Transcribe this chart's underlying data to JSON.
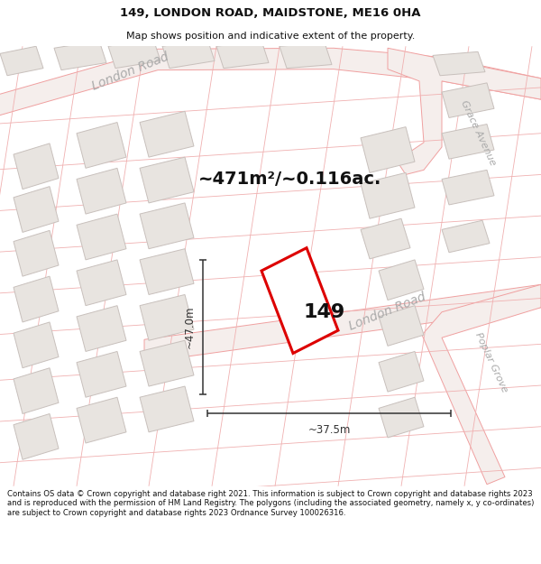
{
  "title_line1": "149, LONDON ROAD, MAIDSTONE, ME16 0HA",
  "title_line2": "Map shows position and indicative extent of the property.",
  "area_label": "~471m²/~0.116ac.",
  "number_label": "149",
  "dim_width": "~37.5m",
  "dim_height": "~47.0m",
  "road_label_top": "London Road",
  "road_label_bottom": "London Road",
  "road_label_grace": "Grace Avenue",
  "road_label_poplar": "Poplar Grove",
  "footer": "Contains OS data © Crown copyright and database right 2021. This information is subject to Crown copyright and database rights 2023 and is reproduced with the permission of HM Land Registry. The polygons (including the associated geometry, namely x, y co-ordinates) are subject to Crown copyright and database rights 2023 Ordnance Survey 100026316.",
  "map_bg": "#ffffff",
  "road_fill": "#f5eeec",
  "road_stroke": "#f0a0a0",
  "road_stroke_thin": "#f0b0b0",
  "parcel_line": "#f0b0b0",
  "gray_fill": "#e8e4e0",
  "gray_stroke": "#c8c0bc",
  "highlight_fill": "#ffffff",
  "highlight_stroke": "#dd0000",
  "dim_color": "#333333",
  "text_road_color": "#aaaaaa",
  "text_label_color": "#111111",
  "title_color": "#111111",
  "footer_color": "#111111"
}
